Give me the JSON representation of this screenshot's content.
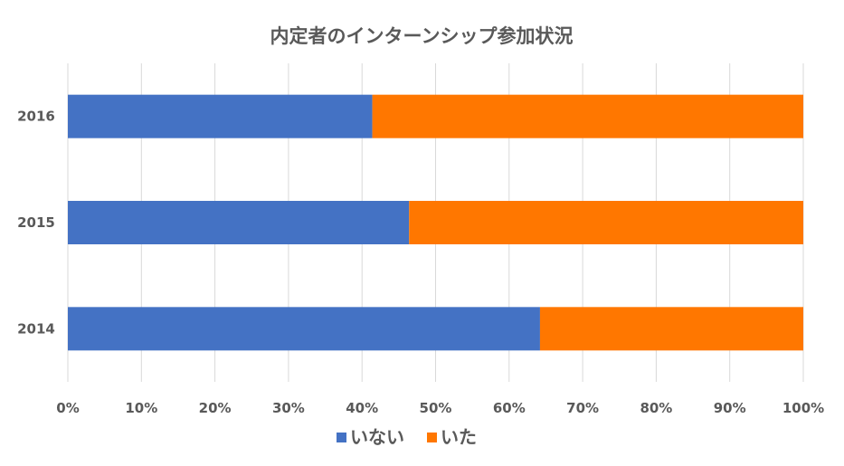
{
  "chart_data": {
    "type": "bar",
    "orientation": "horizontal",
    "stacking": "percent",
    "title": "内定者のインターンシップ参加状況",
    "categories": [
      "2016",
      "2015",
      "2014"
    ],
    "series": [
      {
        "name": "いない",
        "color": "#4472c4",
        "values": [
          41.4,
          46.4,
          64.2
        ]
      },
      {
        "name": "いた",
        "color": "#ff7700",
        "values": [
          58.6,
          53.6,
          35.8
        ]
      }
    ],
    "xlim": [
      0,
      100
    ],
    "x_ticks": [
      "0%",
      "10%",
      "20%",
      "30%",
      "40%",
      "50%",
      "60%",
      "70%",
      "80%",
      "90%",
      "100%"
    ],
    "grid": true,
    "legend_position": "bottom"
  }
}
